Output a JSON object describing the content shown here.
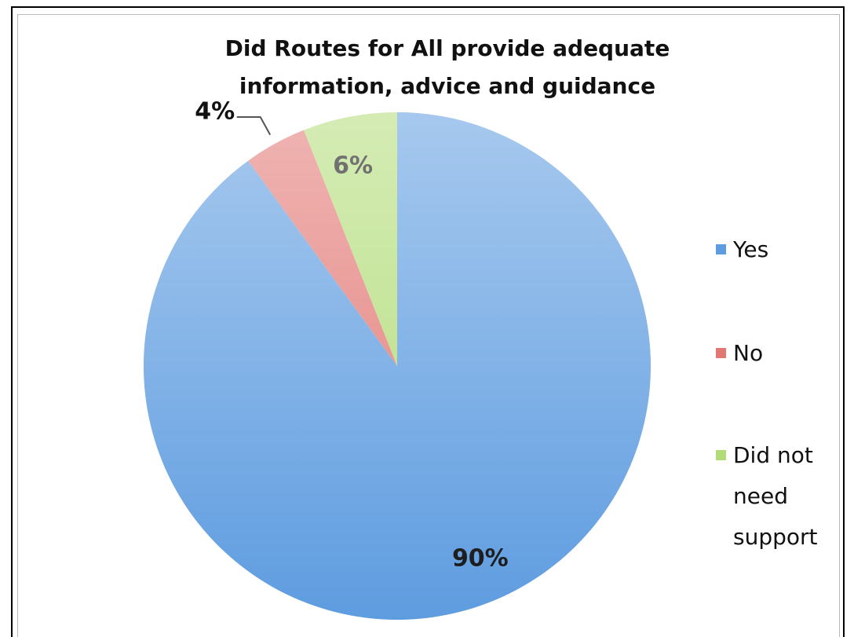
{
  "chart_data": {
    "type": "pie",
    "title": "Did Routes for All provide adequate information, advice and guidance",
    "categories": [
      "Yes",
      "No",
      "Did not need support"
    ],
    "values": [
      90,
      4,
      6
    ],
    "value_labels": [
      "90%",
      "4%",
      "6%"
    ],
    "colors": [
      "#5e9ce0",
      "#e27874",
      "#b2dc78"
    ],
    "legend": "right"
  }
}
